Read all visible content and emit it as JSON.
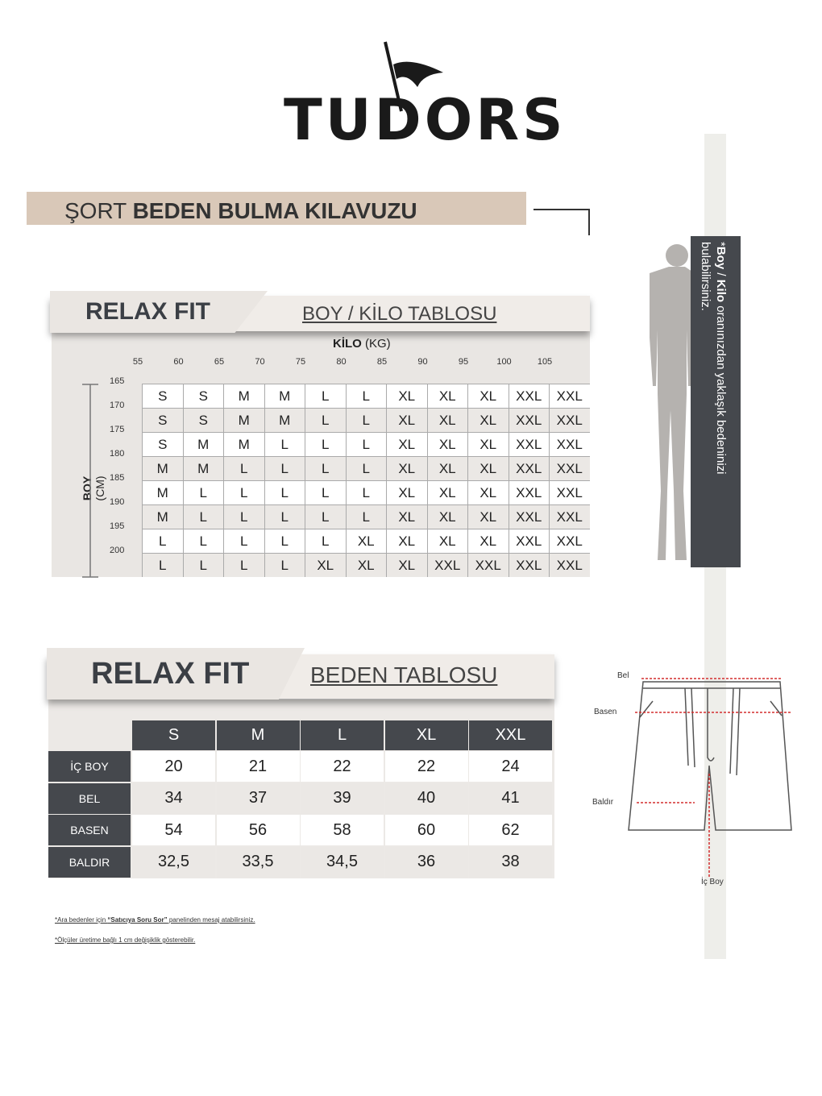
{
  "brand": "TUDORS",
  "title": {
    "light": "ŞORT",
    "bold": "BEDEN BULMA KILAVUZU"
  },
  "side_note": {
    "star": "*",
    "bold1": "Boy",
    "sep": " / ",
    "bold2": "Kilo",
    "rest": " oranınızdan yaklaşık bedeninizi bulabilirsiniz."
  },
  "boy_kilo": {
    "fit": "RELAX FIT",
    "subtitle": "BOY / KİLO TABLOSU",
    "kilo_label": "KİLO",
    "kilo_unit": "(KG)",
    "boy_label": "BOY",
    "boy_unit": "(CM)",
    "kilo_ticks": [
      "55",
      "60",
      "65",
      "70",
      "75",
      "80",
      "85",
      "90",
      "95",
      "100",
      "105"
    ],
    "boy_ticks": [
      "165",
      "170",
      "175",
      "180",
      "185",
      "190",
      "195",
      "200"
    ],
    "rows": [
      [
        "S",
        "S",
        "M",
        "M",
        "L",
        "L",
        "XL",
        "XL",
        "XL",
        "XXL",
        "XXL"
      ],
      [
        "S",
        "S",
        "M",
        "M",
        "L",
        "L",
        "XL",
        "XL",
        "XL",
        "XXL",
        "XXL"
      ],
      [
        "S",
        "M",
        "M",
        "L",
        "L",
        "L",
        "XL",
        "XL",
        "XL",
        "XXL",
        "XXL"
      ],
      [
        "M",
        "M",
        "L",
        "L",
        "L",
        "L",
        "XL",
        "XL",
        "XL",
        "XXL",
        "XXL"
      ],
      [
        "M",
        "L",
        "L",
        "L",
        "L",
        "L",
        "XL",
        "XL",
        "XL",
        "XXL",
        "XXL"
      ],
      [
        "M",
        "L",
        "L",
        "L",
        "L",
        "L",
        "XL",
        "XL",
        "XL",
        "XXL",
        "XXL"
      ],
      [
        "L",
        "L",
        "L",
        "L",
        "L",
        "XL",
        "XL",
        "XL",
        "XL",
        "XXL",
        "XXL"
      ],
      [
        "L",
        "L",
        "L",
        "L",
        "XL",
        "XL",
        "XL",
        "XXL",
        "XXL",
        "XXL",
        "XXL"
      ]
    ]
  },
  "beden": {
    "fit": "RELAX FIT",
    "subtitle": "BEDEN TABLOSU",
    "sizes": [
      "S",
      "M",
      "L",
      "XL",
      "XXL"
    ],
    "rows": [
      {
        "label": "İÇ BOY",
        "values": [
          "20",
          "21",
          "22",
          "22",
          "24"
        ]
      },
      {
        "label": "BEL",
        "values": [
          "34",
          "37",
          "39",
          "40",
          "41"
        ]
      },
      {
        "label": "BASEN",
        "values": [
          "54",
          "56",
          "58",
          "60",
          "62"
        ]
      },
      {
        "label": "BALDIR",
        "values": [
          "32,5",
          "33,5",
          "34,5",
          "36",
          "38"
        ]
      }
    ]
  },
  "diagram": {
    "bel": "Bel",
    "basen": "Basen",
    "baldir": "Baldır",
    "ic_boy": "İç Boy"
  },
  "notes": {
    "n1_pre": "*Ara bedenler için ",
    "n1_bold": "“Satıcıya Soru Sor”",
    "n1_post": " panelinden mesaj atabilirsiniz.",
    "n2": "*Ölçüler üretime bağlı  1 cm değişiklik gösterebilir."
  },
  "colors": {
    "accent_band": "#d9c8b8",
    "dark": "#45484d",
    "red_arrow": "#d32f2f"
  }
}
